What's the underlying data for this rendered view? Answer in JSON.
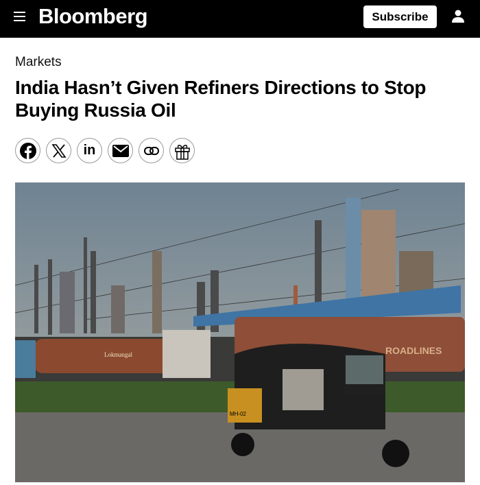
{
  "header": {
    "logo": "Bloomberg",
    "subscribe_label": "Subscribe",
    "menu_icon": "hamburger-icon",
    "account_icon": "user-icon"
  },
  "article": {
    "section": "Markets",
    "title": "India Hasn’t Given Refiners Directions to Stop Buying Russia Oil",
    "share_icons": [
      "facebook-icon",
      "x-icon",
      "linkedin-icon",
      "email-icon",
      "link-icon",
      "gift-icon"
    ],
    "photo": {
      "truck_text_1": "Lokmangal",
      "truck_text_2": "ROADLINES",
      "plate": "MH-02"
    }
  }
}
